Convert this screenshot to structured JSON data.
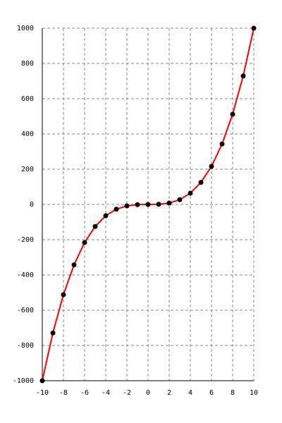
{
  "chart_data": {
    "type": "line",
    "x": [
      -10,
      -9,
      -8,
      -7,
      -6,
      -5,
      -4,
      -3,
      -2,
      -1,
      0,
      1,
      2,
      3,
      4,
      5,
      6,
      7,
      8,
      9,
      10
    ],
    "series": [
      {
        "color": "#ff0000",
        "marker_color": "#000000",
        "values": [
          -1000,
          -729,
          -512,
          -343,
          -216,
          -125,
          -64,
          -27,
          -8,
          -1,
          0,
          1,
          8,
          27,
          64,
          125,
          216,
          343,
          512,
          729,
          1000
        ]
      }
    ],
    "xlim": [
      -10,
      10
    ],
    "xticks": [
      -10,
      -8,
      -6,
      -4,
      -2,
      0,
      2,
      4,
      6,
      8,
      10
    ],
    "ylim": [
      -1000,
      1000
    ],
    "yticks": [
      -1000,
      -800,
      -600,
      -400,
      -200,
      0,
      200,
      400,
      600,
      800,
      1000
    ],
    "grid": true
  }
}
